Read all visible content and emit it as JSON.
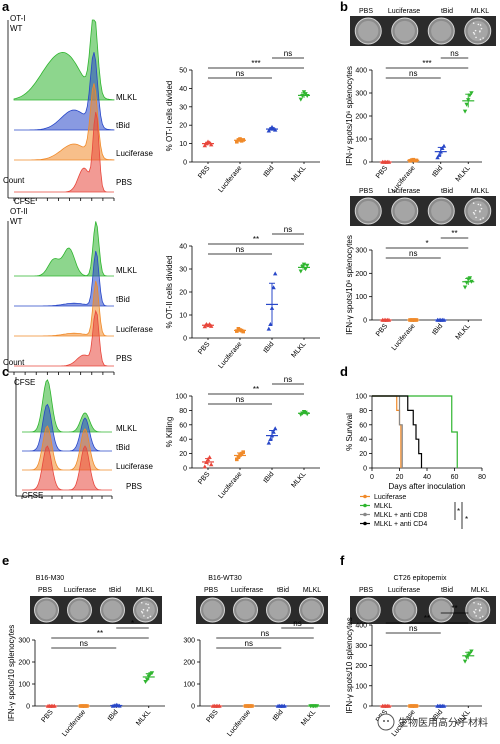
{
  "figure": {
    "panel_labels": [
      "a",
      "b",
      "c",
      "d",
      "e",
      "f"
    ],
    "panel_a": {
      "top_title": [
        "OT-I",
        "WT"
      ],
      "bottom_title": [
        "OT-II",
        "WT"
      ],
      "histo_labels": [
        "MLKL",
        "tBid",
        "Luciferase",
        "PBS"
      ],
      "count_label": "Count",
      "cfse_label": "CFSE"
    },
    "panel_b": {
      "well_labels": [
        "PBS",
        "Luciferase",
        "tBid",
        "MLKL"
      ]
    },
    "panel_c": {
      "histo_labels": [
        "MLKL",
        "tBid",
        "Luciferase",
        "PBS"
      ],
      "cfse_label": "CFSE"
    },
    "panel_e": {
      "titles": [
        "B16-M30",
        "B16-WT30"
      ],
      "well_labels": [
        "PBS",
        "Luciferase",
        "tBid",
        "MLKL"
      ]
    },
    "panel_f": {
      "title": "CT26 epitopemix",
      "well_labels": [
        "PBS",
        "Luciferase",
        "tBid",
        "MLKL"
      ]
    },
    "watermark": "生物医用高分子材料"
  },
  "colors": {
    "PBS": "#e8473c",
    "Luciferase": "#f08a2a",
    "tBid": "#2847c8",
    "MLKL": "#2fb52f",
    "CD8": "#888888",
    "CD4": "#000000"
  },
  "chart_data": [
    {
      "id": "a1",
      "type": "scatter",
      "categories": [
        "PBS",
        "Luciferase",
        "tBid",
        "MLKL"
      ],
      "ylabel": "% OT-I cells divided",
      "ylim": [
        0,
        50
      ],
      "yticks": [
        0,
        10,
        20,
        30,
        40,
        50
      ],
      "series": [
        {
          "values": [
            [
              9,
              10,
              11,
              10.5,
              9.5
            ],
            [
              11,
              12,
              12.5,
              11.5,
              12
            ],
            [
              17,
              18,
              19,
              18,
              17.5
            ],
            [
              34,
              36,
              38,
              37,
              36
            ]
          ]
        }
      ],
      "significance": [
        {
          "from": 0,
          "to": 3,
          "label": "***"
        },
        {
          "from": 0,
          "to": 2,
          "label": "ns"
        },
        {
          "from": 2,
          "to": 3,
          "label": "ns"
        }
      ]
    },
    {
      "id": "a2",
      "type": "scatter",
      "categories": [
        "PBS",
        "Luciferase",
        "tBid",
        "MLKL"
      ],
      "ylabel": "% OT-II cells divided",
      "ylim": [
        0,
        40
      ],
      "yticks": [
        0,
        10,
        20,
        30,
        40
      ],
      "series": [
        {
          "values": [
            [
              5,
              6,
              5.5,
              6,
              5.2
            ],
            [
              3,
              4,
              3.5,
              3.2,
              2.8
            ],
            [
              4,
              6,
              13,
              22,
              28
            ],
            [
              29,
              31,
              32,
              30,
              31.5
            ]
          ]
        }
      ],
      "significance": [
        {
          "from": 0,
          "to": 3,
          "label": "**"
        },
        {
          "from": 0,
          "to": 2,
          "label": "ns"
        },
        {
          "from": 2,
          "to": 3,
          "label": "ns"
        }
      ]
    },
    {
      "id": "b1",
      "type": "scatter",
      "categories": [
        "PBS",
        "Luciferase",
        "tBid",
        "MLKL"
      ],
      "ylabel": "IFN-γ spots/10⁶ splenocytes",
      "ylim": [
        0,
        400
      ],
      "yticks": [
        0,
        100,
        200,
        300,
        400
      ],
      "series": [
        {
          "values": [
            [
              0,
              0,
              0,
              0,
              0
            ],
            [
              5,
              8,
              10,
              6,
              7
            ],
            [
              20,
              30,
              45,
              60,
              70
            ],
            [
              220,
              250,
              270,
              290,
              300
            ]
          ]
        }
      ],
      "significance": [
        {
          "from": 0,
          "to": 3,
          "label": "***"
        },
        {
          "from": 0,
          "to": 2,
          "label": "ns"
        },
        {
          "from": 2,
          "to": 3,
          "label": "ns"
        }
      ]
    },
    {
      "id": "b2",
      "type": "scatter",
      "categories": [
        "PBS",
        "Luciferase",
        "tBid",
        "MLKL"
      ],
      "ylabel": "IFN-γ spots/10⁶ splenocytes",
      "ylim": [
        0,
        300
      ],
      "yticks": [
        0,
        100,
        200,
        300
      ],
      "series": [
        {
          "values": [
            [
              0,
              0,
              0,
              0,
              0
            ],
            [
              0,
              0,
              0,
              0,
              0
            ],
            [
              0,
              0,
              0,
              0,
              0
            ],
            [
              140,
              160,
              175,
              180,
              165
            ]
          ]
        }
      ],
      "significance": [
        {
          "from": 0,
          "to": 3,
          "label": "*"
        },
        {
          "from": 0,
          "to": 2,
          "label": "ns"
        },
        {
          "from": 2,
          "to": 3,
          "label": "**"
        }
      ]
    },
    {
      "id": "c1",
      "type": "scatter",
      "categories": [
        "PBS",
        "Luciferase",
        "tBid",
        "MLKL"
      ],
      "ylabel": "% Killing",
      "ylim": [
        0,
        100
      ],
      "yticks": [
        0,
        20,
        40,
        60,
        80,
        100
      ],
      "series": [
        {
          "values": [
            [
              2,
              8,
              12,
              15,
              5
            ],
            [
              12,
              15,
              18,
              20,
              22
            ],
            [
              35,
              40,
              45,
              50,
              55
            ],
            [
              74,
              76,
              78,
              77,
              75
            ]
          ]
        }
      ],
      "significance": [
        {
          "from": 0,
          "to": 3,
          "label": "**"
        },
        {
          "from": 0,
          "to": 2,
          "label": "ns"
        },
        {
          "from": 2,
          "to": 3,
          "label": "ns"
        }
      ]
    },
    {
      "id": "d1",
      "type": "line",
      "xlabel": "Days after inoculation",
      "ylabel": "% Survival",
      "xlim": [
        0,
        80
      ],
      "ylim": [
        0,
        100
      ],
      "xticks": [
        0,
        20,
        40,
        60,
        80
      ],
      "yticks": [
        0,
        20,
        40,
        60,
        80,
        100
      ],
      "series": [
        {
          "name": "Luciferase",
          "steps": [
            [
              0,
              100
            ],
            [
              18,
              100
            ],
            [
              18,
              80
            ],
            [
              20,
              80
            ],
            [
              20,
              60
            ],
            [
              21,
              60
            ],
            [
              21,
              0
            ]
          ]
        },
        {
          "name": "MLKL",
          "steps": [
            [
              0,
              100
            ],
            [
              58,
              100
            ],
            [
              58,
              50
            ],
            [
              62,
              50
            ],
            [
              62,
              0
            ]
          ]
        },
        {
          "name": "MLKL + anti CD8",
          "steps": [
            [
              0,
              100
            ],
            [
              20,
              100
            ],
            [
              20,
              60
            ],
            [
              22,
              60
            ],
            [
              22,
              0
            ]
          ]
        },
        {
          "name": "MLKL + anti CD4",
          "steps": [
            [
              0,
              100
            ],
            [
              26,
              100
            ],
            [
              26,
              80
            ],
            [
              30,
              80
            ],
            [
              30,
              60
            ],
            [
              32,
              60
            ],
            [
              32,
              40
            ],
            [
              34,
              40
            ],
            [
              34,
              20
            ],
            [
              36,
              20
            ],
            [
              36,
              0
            ]
          ]
        }
      ],
      "significance": [
        "*",
        "*"
      ]
    },
    {
      "id": "e1",
      "type": "scatter",
      "categories": [
        "PBS",
        "Luciferase",
        "tBid",
        "MLKL"
      ],
      "ylabel": "IFN-γ spots/10 splenocytes",
      "ylim": [
        0,
        300
      ],
      "yticks": [
        0,
        100,
        200,
        300
      ],
      "series": [
        {
          "values": [
            [
              0,
              0,
              0,
              0,
              0
            ],
            [
              0,
              0,
              0,
              0,
              0
            ],
            [
              0,
              2,
              5,
              3,
              1
            ],
            [
              110,
              120,
              135,
              145,
              150
            ]
          ]
        }
      ],
      "significance": [
        {
          "from": 0,
          "to": 3,
          "label": "**"
        },
        {
          "from": 0,
          "to": 2,
          "label": "ns"
        },
        {
          "from": 2,
          "to": 3,
          "label": "*"
        }
      ]
    },
    {
      "id": "e2",
      "type": "scatter",
      "categories": [
        "PBS",
        "Luciferase",
        "tBid",
        "MLKL"
      ],
      "ylabel": "",
      "ylim": [
        0,
        300
      ],
      "yticks": [
        0,
        100,
        200,
        300
      ],
      "series": [
        {
          "values": [
            [
              0,
              0,
              0,
              0,
              0
            ],
            [
              0,
              0,
              0,
              0,
              0
            ],
            [
              0,
              0,
              0,
              0,
              0
            ],
            [
              0,
              0,
              0,
              0,
              0
            ]
          ]
        }
      ],
      "significance": [
        {
          "from": 0,
          "to": 3,
          "label": "ns"
        },
        {
          "from": 0,
          "to": 2,
          "label": "ns"
        },
        {
          "from": 2,
          "to": 3,
          "label": "ns"
        }
      ]
    },
    {
      "id": "f1",
      "type": "scatter",
      "categories": [
        "PBS",
        "Luciferase",
        "tBid",
        "MLKL"
      ],
      "ylabel": "IFN-γ spots/10 splenocytes",
      "ylim": [
        0,
        400
      ],
      "yticks": [
        0,
        100,
        200,
        300,
        400
      ],
      "series": [
        {
          "values": [
            [
              0,
              0,
              0,
              0,
              0
            ],
            [
              0,
              0,
              0,
              0,
              0
            ],
            [
              0,
              0,
              0,
              0,
              0
            ],
            [
              220,
              240,
              250,
              260,
              270
            ]
          ]
        }
      ],
      "significance": [
        {
          "from": 0,
          "to": 3,
          "label": "**"
        },
        {
          "from": 0,
          "to": 2,
          "label": "ns"
        },
        {
          "from": 2,
          "to": 3,
          "label": "**"
        }
      ]
    }
  ]
}
